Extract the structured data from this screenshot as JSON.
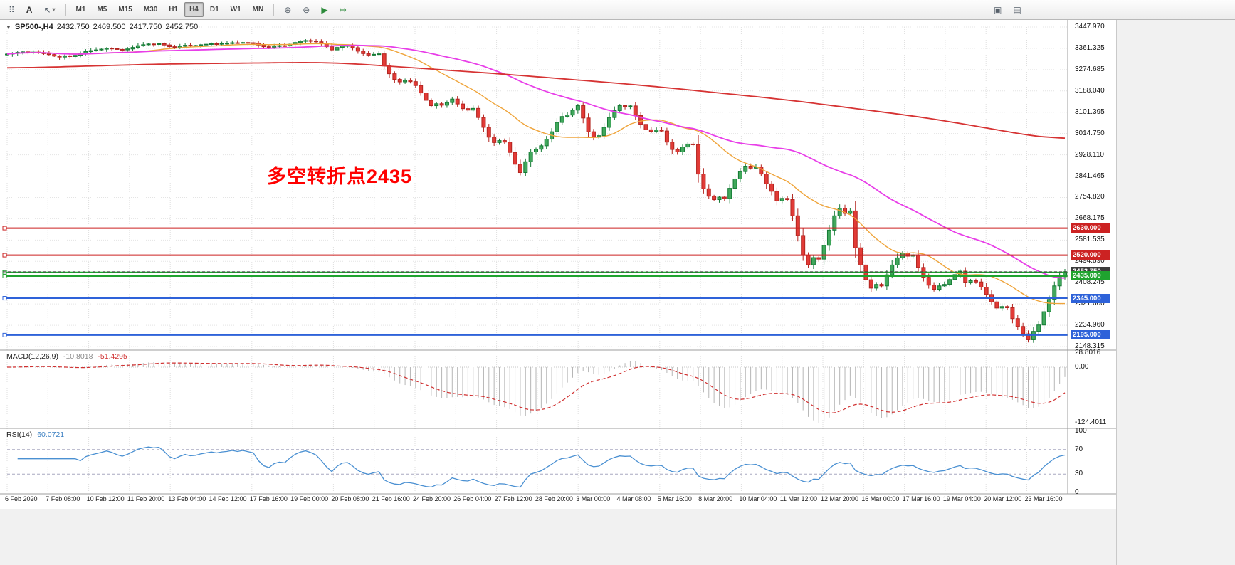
{
  "toolbar": {
    "left_icons": [
      {
        "name": "toolbar-grip",
        "glyph": "⠿"
      },
      {
        "name": "text-tool",
        "glyph": "A"
      },
      {
        "name": "arrow-tool",
        "glyph": "↖",
        "caret": "▾"
      }
    ],
    "timeframes": [
      {
        "label": "M1",
        "active": false
      },
      {
        "label": "M5",
        "active": false
      },
      {
        "label": "M15",
        "active": false
      },
      {
        "label": "M30",
        "active": false
      },
      {
        "label": "H1",
        "active": false
      },
      {
        "label": "H4",
        "active": true
      },
      {
        "label": "D1",
        "active": false
      },
      {
        "label": "W1",
        "active": false
      },
      {
        "label": "MN",
        "active": false
      }
    ],
    "chart_icons": [
      {
        "name": "zoom-in",
        "glyph": "⊕",
        "green": false
      },
      {
        "name": "zoom-out",
        "glyph": "⊖",
        "green": false
      },
      {
        "name": "auto-scroll",
        "glyph": "▶",
        "green": true
      },
      {
        "name": "chart-shift",
        "glyph": "↦",
        "green": true
      }
    ],
    "right_icons": [
      {
        "name": "chart-window",
        "glyph": "▣",
        "green": false
      },
      {
        "name": "tile-windows",
        "glyph": "▤",
        "green": false
      }
    ]
  },
  "chart_header": {
    "collapse_glyph": "▼",
    "symbol": "SP500-,H4",
    "open": "2432.750",
    "high": "2469.500",
    "low": "2417.750",
    "close": "2452.750"
  },
  "annotation": {
    "text": "多空转折点2435",
    "color": "#ff0000"
  },
  "price_axis": {
    "ticks": [
      "3447.970",
      "3361.325",
      "3274.685",
      "3188.040",
      "3101.395",
      "3014.750",
      "2928.110",
      "2841.465",
      "2754.820",
      "2668.175",
      "2581.535",
      "2494.890",
      "2408.245",
      "2321.600",
      "2234.960",
      "2148.315"
    ]
  },
  "time_axis": {
    "labels": [
      "6 Feb 2020",
      "7 Feb 08:00",
      "10 Feb 12:00",
      "11 Feb 20:00",
      "13 Feb 04:00",
      "14 Feb 12:00",
      "17 Feb 16:00",
      "19 Feb 00:00",
      "20 Feb 08:00",
      "21 Feb 16:00",
      "24 Feb 20:00",
      "26 Feb 04:00",
      "27 Feb 12:00",
      "28 Feb 20:00",
      "3 Mar 00:00",
      "4 Mar 08:00",
      "5 Mar 16:00",
      "8 Mar 20:00",
      "10 Mar 04:00",
      "11 Mar 12:00",
      "12 Mar 20:00",
      "16 Mar 00:00",
      "17 Mar 16:00",
      "19 Mar 04:00",
      "20 Mar 12:00",
      "23 Mar 16:00"
    ]
  },
  "levels": [
    {
      "price": 2630.0,
      "label": "2630.000",
      "color": "#cc2222",
      "width": 2,
      "dashed": false,
      "role": "resistance-line"
    },
    {
      "price": 2520.0,
      "label": "2520.000",
      "color": "#cc2222",
      "width": 2,
      "dashed": false,
      "role": "resistance-line"
    },
    {
      "price": 2450.0,
      "label": "",
      "color": "#1fa32f",
      "width": 2,
      "dashed": false,
      "role": "zone-line"
    },
    {
      "price": 2452.75,
      "label": "2452.750",
      "color": "#3c3c3c",
      "width": 1,
      "dashed": true,
      "role": "current-price-line"
    },
    {
      "price": 2435.0,
      "label": "2435.000",
      "color": "#1fa32f",
      "width": 2,
      "dashed": false,
      "role": "pivot-line"
    },
    {
      "price": 2345.0,
      "label": "2345.000",
      "color": "#2e62d9",
      "width": 2,
      "dashed": false,
      "role": "support-line"
    },
    {
      "price": 2195.0,
      "label": "2195.000",
      "color": "#2e62d9",
      "width": 2,
      "dashed": false,
      "role": "support-line"
    }
  ],
  "indicators": {
    "macd": {
      "label": "MACD(12,26,9)",
      "value": "-10.8018",
      "signal_value": "-51.4295",
      "scale_top": "28.8016",
      "scale_zero": "0.00",
      "scale_bottom": "-124.4011",
      "histogram_color": "#b6b6b6",
      "signal_color": "#d03030"
    },
    "rsi": {
      "label": "RSI(14)",
      "value": "60.0721",
      "scale": [
        "100",
        "70",
        "30",
        "0"
      ],
      "level_lines": [
        70,
        30
      ],
      "line_color": "#4a90d2"
    }
  },
  "chart_data": {
    "type": "candlestick",
    "symbol": "SP500-",
    "timeframe": "H4",
    "price_range": [
      2148.315,
      3447.97
    ],
    "up_color": "#41a85c",
    "up_border": "#157a35",
    "down_color": "#e23b37",
    "down_border": "#b2241f",
    "closes": [
      3338,
      3342,
      3345,
      3347,
      3344,
      3346,
      3344,
      3340,
      3336,
      3330,
      3326,
      3331,
      3328,
      3333,
      3340,
      3348,
      3352,
      3355,
      3358,
      3362,
      3360,
      3357,
      3355,
      3359,
      3365,
      3372,
      3376,
      3379,
      3378,
      3380,
      3375,
      3368,
      3365,
      3370,
      3374,
      3372,
      3373,
      3376,
      3378,
      3380,
      3379,
      3381,
      3382,
      3384,
      3383,
      3385,
      3384,
      3383,
      3375,
      3368,
      3365,
      3370,
      3372,
      3371,
      3378,
      3385,
      3390,
      3393,
      3391,
      3388,
      3380,
      3368,
      3355,
      3365,
      3372,
      3373,
      3364,
      3350,
      3340,
      3334,
      3337,
      3339,
      3290,
      3258,
      3235,
      3225,
      3231,
      3226,
      3210,
      3180,
      3150,
      3128,
      3136,
      3130,
      3141,
      3155,
      3135,
      3116,
      3110,
      3117,
      3080,
      3040,
      3000,
      2978,
      2986,
      2980,
      2938,
      2890,
      2856,
      2900,
      2940,
      2951,
      2965,
      2992,
      3022,
      3060,
      3084,
      3090,
      3110,
      3128,
      3078,
      3022,
      3000,
      3006,
      3040,
      3080,
      3108,
      3128,
      3124,
      3127,
      3088,
      3052,
      3030,
      3023,
      3029,
      3025,
      2980,
      2950,
      2940,
      2960,
      2972,
      2970,
      2850,
      2790,
      2760,
      2746,
      2756,
      2750,
      2792,
      2830,
      2860,
      2882,
      2874,
      2879,
      2850,
      2810,
      2780,
      2741,
      2751,
      2746,
      2680,
      2600,
      2520,
      2481,
      2510,
      2504,
      2560,
      2622,
      2680,
      2711,
      2690,
      2700,
      2550,
      2480,
      2420,
      2386,
      2401,
      2395,
      2440,
      2480,
      2509,
      2529,
      2516,
      2521,
      2470,
      2430,
      2398,
      2381,
      2395,
      2401,
      2421,
      2441,
      2455,
      2410,
      2416,
      2411,
      2390,
      2360,
      2330,
      2305,
      2311,
      2306,
      2262,
      2230,
      2200,
      2176,
      2210,
      2236,
      2290,
      2340,
      2395,
      2432.75,
      2452.75
    ],
    "moving_averages": [
      {
        "name": "ma-fast",
        "color": "#efa43a",
        "width": 1.4,
        "method": "sma",
        "period": 20
      },
      {
        "name": "ma-mid",
        "color": "#e83ee8",
        "width": 1.8,
        "method": "sma",
        "period": 50
      },
      {
        "name": "ma-slow",
        "color": "#d63333",
        "width": 1.8,
        "method": "points",
        "points": [
          [
            0,
            3280
          ],
          [
            30,
            3298
          ],
          [
            62,
            3305
          ],
          [
            94,
            3258
          ],
          [
            121,
            3212
          ],
          [
            149,
            3152
          ],
          [
            176,
            3078
          ],
          [
            202,
            2982
          ]
        ]
      }
    ],
    "macd_params": {
      "fast": 12,
      "slow": 26,
      "signal": 9
    },
    "rsi_params": {
      "period": 14
    }
  }
}
